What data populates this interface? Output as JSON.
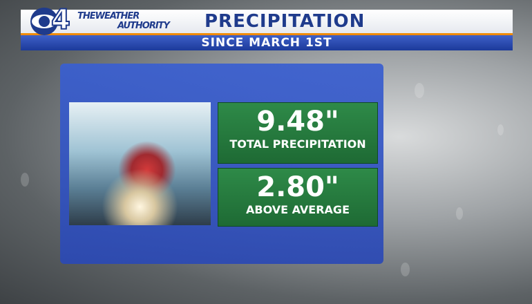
{
  "logo": {
    "channel": "4",
    "line1": "THEWEATHER",
    "line2": "AUTHORITY"
  },
  "header": {
    "title": "PRECIPITATION",
    "subtitle": "SINCE MARCH 1ST"
  },
  "stats": [
    {
      "value": "9.48\"",
      "label": "TOTAL PRECIPITATION"
    },
    {
      "value": "2.80\"",
      "label": "ABOVE AVERAGE"
    }
  ]
}
